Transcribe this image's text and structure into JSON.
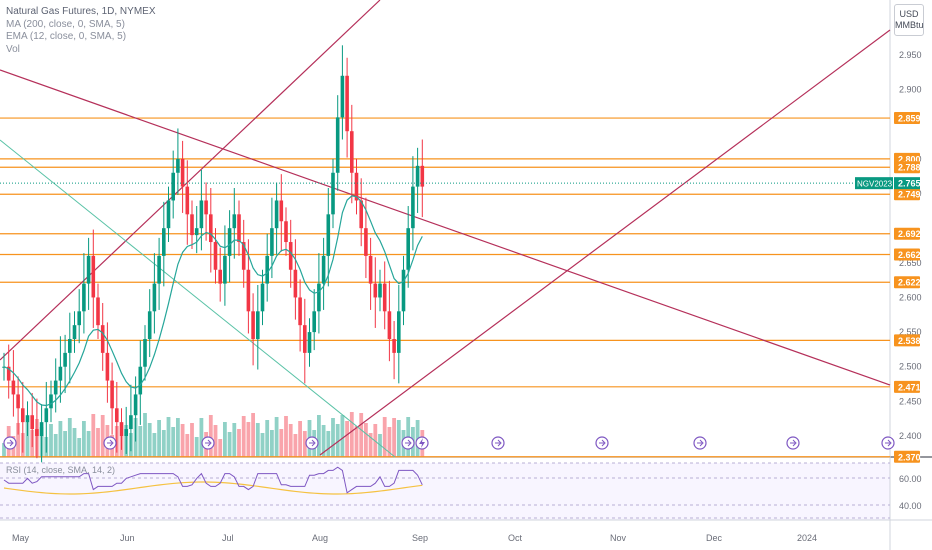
{
  "header": {
    "title": "Natural Gas Futures, 1D, NYMEX",
    "indicators": [
      "MA (200, close, 0, SMA, 5)",
      "EMA (12, close, 0, SMA, 5)",
      "Vol"
    ]
  },
  "price_scale": {
    "unit_top": "USD",
    "unit_bottom": "MMBtu",
    "ticks": [
      "2.950",
      "2.900",
      "2.800",
      "2.750",
      "2.650",
      "2.600",
      "2.550",
      "2.500",
      "2.450",
      "2.400"
    ]
  },
  "level_tags": [
    {
      "label": "2.859",
      "color": "#f7931e"
    },
    {
      "label": "2.800",
      "color": "#f7931e"
    },
    {
      "label": "2.788",
      "color": "#f7931e"
    },
    {
      "label": "2.749",
      "color": "#f7931e"
    },
    {
      "label": "2.692",
      "color": "#f7931e"
    },
    {
      "label": "2.662",
      "color": "#f7931e"
    },
    {
      "label": "2.622",
      "color": "#f7931e"
    },
    {
      "label": "2.538",
      "color": "#f7931e"
    },
    {
      "label": "2.471",
      "color": "#f7931e"
    },
    {
      "label": "2.370",
      "color": "#f7931e"
    }
  ],
  "symbol_tag": {
    "symbol": "NGV2023",
    "price": "2.765",
    "color": "#089981"
  },
  "time_axis": [
    "May",
    "Jun",
    "Jul",
    "Aug",
    "Sep",
    "Oct",
    "Nov",
    "Dec",
    "2024"
  ],
  "rsi": {
    "label": "RSI (14, close, SMA, 14, 2)",
    "ticks": [
      "60.00",
      "40.00"
    ],
    "line_color": "#7e57c2",
    "ma_color": "#f5c242"
  },
  "colors": {
    "up": "#089981",
    "down": "#f23645",
    "level": "#f7931e",
    "trend": "#b5305a",
    "trend2": "#59c2a6"
  }
}
